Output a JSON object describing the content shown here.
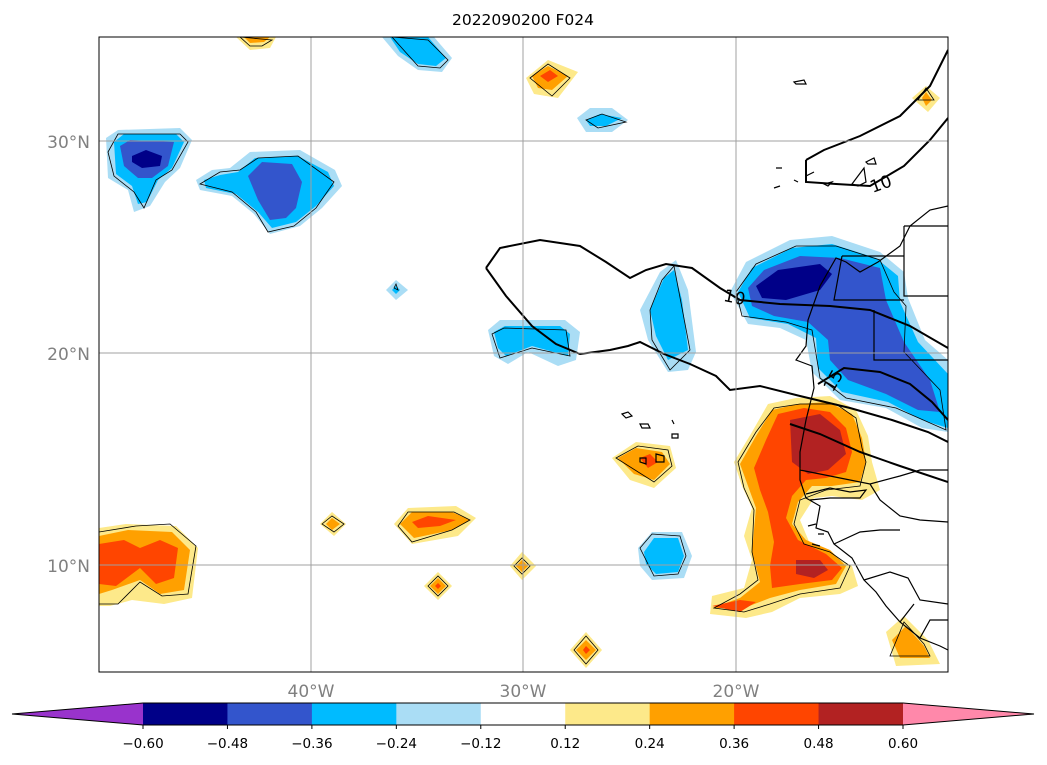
{
  "title": "2022090200 F024",
  "map": {
    "lat_labels": [
      "30°N",
      "20°N",
      "10°N"
    ],
    "lon_labels": [
      "40°W",
      "30°W",
      "20°W"
    ],
    "contour_labels": [
      "10",
      "10",
      "15"
    ]
  },
  "colorbar": {
    "ticks": [
      "−0.60",
      "−0.48",
      "−0.36",
      "−0.24",
      "−0.12",
      "0.12",
      "0.24",
      "0.36",
      "0.48",
      "0.60"
    ],
    "colors": [
      "#9933cc",
      "#000088",
      "#3355cc",
      "#00bbff",
      "#aaddf5",
      "#ffffff",
      "#fde98a",
      "#ffa000",
      "#ff4500",
      "#b22222",
      "#ff88aa"
    ]
  },
  "palette": {
    "deep_blue": "#000088",
    "mid_blue": "#3355cc",
    "cyan": "#00bbff",
    "light_blue": "#aaddf5",
    "light_yellow": "#fde98a",
    "orange": "#ffa000",
    "red_orange": "#ff4500",
    "dark_red": "#b22222"
  }
}
